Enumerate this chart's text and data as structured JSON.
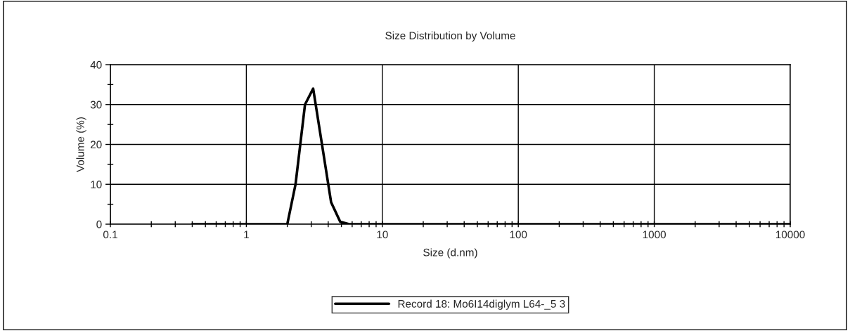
{
  "chart_data": {
    "type": "line",
    "title": "Size Distribution by Volume",
    "xlabel": "Size (d.nm)",
    "ylabel": "Volume (%)",
    "x": [
      0.4,
      1.0,
      2.0,
      2.3,
      2.7,
      3.1,
      3.6,
      4.2,
      4.9,
      5.7,
      10,
      100,
      1000,
      10000
    ],
    "series": [
      {
        "name": "Record 18: Mo6I14diglym L64-_5 3",
        "color": "#000000",
        "values": [
          0,
          0,
          0,
          10,
          30,
          34,
          20,
          5.5,
          0.6,
          0,
          0,
          0,
          0,
          0
        ]
      }
    ],
    "log": "x",
    "xlim": [
      0.1,
      10000
    ],
    "ylim": [
      0,
      40
    ],
    "xticks": [
      0.1,
      {
        "value": 0.2,
        "label": null
      },
      {
        "value": 0.3,
        "label": null
      },
      {
        "value": 0.4,
        "label": null
      },
      {
        "value": 0.5,
        "label": null
      },
      {
        "value": 0.6,
        "label": null
      },
      {
        "value": 0.7,
        "label": null
      },
      {
        "value": 0.8,
        "label": null
      },
      {
        "value": 0.9,
        "label": null
      },
      1,
      {
        "value": 2,
        "label": null
      },
      {
        "value": 3,
        "label": null
      },
      {
        "value": 4,
        "label": null
      },
      {
        "value": 5,
        "label": null
      },
      {
        "value": 6,
        "label": null
      },
      {
        "value": 7,
        "label": null
      },
      {
        "value": 8,
        "label": null
      },
      {
        "value": 9,
        "label": null
      },
      10,
      {
        "value": 20,
        "label": null
      },
      {
        "value": 30,
        "label": null
      },
      {
        "value": 40,
        "label": null
      },
      {
        "value": 50,
        "label": null
      },
      {
        "value": 60,
        "label": null
      },
      {
        "value": 70,
        "label": null
      },
      {
        "value": 80,
        "label": null
      },
      {
        "value": 90,
        "label": null
      },
      100,
      {
        "value": 200,
        "label": null
      },
      {
        "value": 300,
        "label": null
      },
      {
        "value": 400,
        "label": null
      },
      {
        "value": 500,
        "label": null
      },
      {
        "value": 600,
        "label": null
      },
      {
        "value": 700,
        "label": null
      },
      {
        "value": 800,
        "label": null
      },
      {
        "value": 900,
        "label": null
      },
      1000,
      {
        "value": 2000,
        "label": null
      },
      {
        "value": 3000,
        "label": null
      },
      {
        "value": 4000,
        "label": null
      },
      {
        "value": 5000,
        "label": null
      },
      {
        "value": 6000,
        "label": null
      },
      {
        "value": 7000,
        "label": null
      },
      {
        "value": 8000,
        "label": null
      },
      {
        "value": 9000,
        "label": null
      },
      10000
    ],
    "yticks": [
      0,
      {
        "value": 5,
        "label": null
      },
      10,
      {
        "value": 15,
        "label": null
      },
      20,
      {
        "value": 25,
        "label": null
      },
      30,
      {
        "value": 35,
        "label": null
      },
      40
    ],
    "grid": true,
    "legend": "bottom",
    "marker": "none",
    "line_style": "solid"
  }
}
